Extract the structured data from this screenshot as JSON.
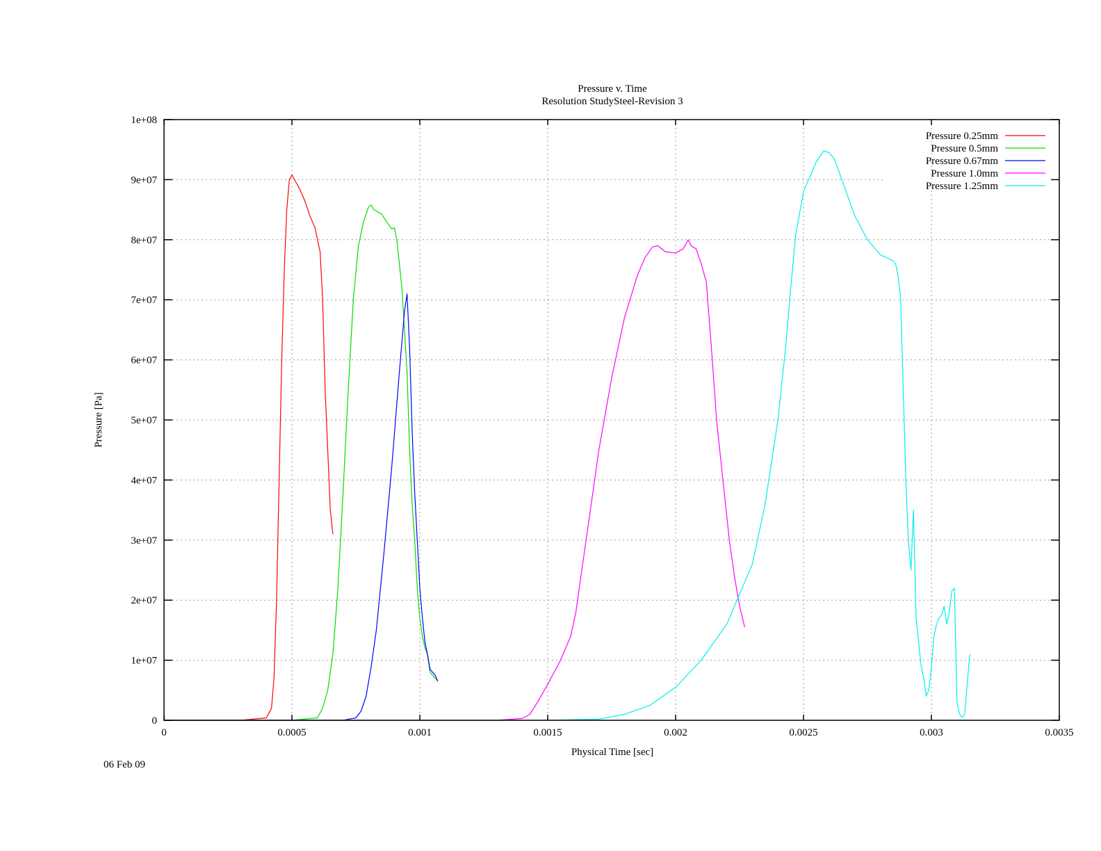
{
  "footer": {
    "date": "06 Feb 09"
  },
  "chart_data": {
    "type": "line",
    "title": "Pressure v. Time",
    "subtitle": "Resolution StudySteel-Revision 3",
    "xlabel": "Physical Time [sec]",
    "ylabel": "Pressure [Pa]",
    "xlabel_color": "#00dd00",
    "ylabel_color": "#ff0000",
    "xlim": [
      0,
      0.0035
    ],
    "ylim": [
      0,
      100000000
    ],
    "xticks": [
      0,
      0.0005,
      0.001,
      0.0015,
      0.002,
      0.0025,
      0.003,
      0.0035
    ],
    "xtick_labels": [
      "0",
      "0.0005",
      "0.001",
      "0.0015",
      "0.002",
      "0.0025",
      "0.003",
      "0.0035"
    ],
    "yticks": [
      0,
      10000000,
      20000000,
      30000000,
      40000000,
      50000000,
      60000000,
      70000000,
      80000000,
      90000000,
      100000000
    ],
    "ytick_labels": [
      "0",
      "1e+07",
      "2e+07",
      "3e+07",
      "4e+07",
      "5e+07",
      "6e+07",
      "7e+07",
      "8e+07",
      "9e+07",
      "1e+08"
    ],
    "grid": true,
    "legend_position": "top-right",
    "series": [
      {
        "name": "Pressure 0.25mm",
        "color": "#ff0000",
        "points": [
          [
            0,
            0
          ],
          [
            0.0003,
            0
          ],
          [
            0.0004,
            0.4
          ],
          [
            0.00042,
            2
          ],
          [
            0.00043,
            7
          ],
          [
            0.00044,
            20
          ],
          [
            0.00045,
            40
          ],
          [
            0.00046,
            60
          ],
          [
            0.00047,
            75
          ],
          [
            0.00048,
            85
          ],
          [
            0.00049,
            90
          ],
          [
            0.0005,
            90.8
          ],
          [
            0.00051,
            90
          ],
          [
            0.00053,
            88.5
          ],
          [
            0.00055,
            86.5
          ],
          [
            0.00057,
            84
          ],
          [
            0.00059,
            82
          ],
          [
            0.00061,
            78
          ],
          [
            0.00062,
            70
          ],
          [
            0.00063,
            55
          ],
          [
            0.00065,
            35
          ],
          [
            0.00066,
            31
          ]
        ]
      },
      {
        "name": "Pressure 0.5mm",
        "color": "#00dd00",
        "points": [
          [
            0,
            0
          ],
          [
            0.0005,
            0
          ],
          [
            0.0006,
            0.4
          ],
          [
            0.00062,
            2
          ],
          [
            0.00064,
            5
          ],
          [
            0.00066,
            11
          ],
          [
            0.00068,
            22
          ],
          [
            0.0007,
            38
          ],
          [
            0.00072,
            55
          ],
          [
            0.00074,
            70
          ],
          [
            0.00076,
            79
          ],
          [
            0.00078,
            83
          ],
          [
            0.0008,
            85.5
          ],
          [
            0.00081,
            85.8
          ],
          [
            0.00082,
            85
          ],
          [
            0.00085,
            84.3
          ],
          [
            0.00087,
            83
          ],
          [
            0.00089,
            81.8
          ],
          [
            0.0009,
            82
          ],
          [
            0.00091,
            80
          ],
          [
            0.00093,
            72
          ],
          [
            0.00095,
            58
          ],
          [
            0.00096,
            45
          ],
          [
            0.00097,
            36
          ],
          [
            0.00098,
            30
          ],
          [
            0.00099,
            22
          ],
          [
            0.001,
            17
          ],
          [
            0.00101,
            14
          ],
          [
            0.00102,
            12
          ],
          [
            0.00103,
            11
          ],
          [
            0.00104,
            8
          ],
          [
            0.00106,
            7
          ],
          [
            0.00107,
            6.5
          ]
        ]
      },
      {
        "name": "Pressure 0.67mm",
        "color": "#0000ff",
        "points": [
          [
            0,
            0
          ],
          [
            0.0007,
            0
          ],
          [
            0.00075,
            0.4
          ],
          [
            0.00077,
            1.5
          ],
          [
            0.00079,
            4
          ],
          [
            0.00081,
            9
          ],
          [
            0.00083,
            15
          ],
          [
            0.00086,
            28
          ],
          [
            0.00089,
            42
          ],
          [
            0.00092,
            58
          ],
          [
            0.00094,
            68
          ],
          [
            0.00095,
            71
          ],
          [
            0.00096,
            62
          ],
          [
            0.00097,
            48
          ],
          [
            0.00098,
            38
          ],
          [
            0.00099,
            30
          ],
          [
            0.001,
            22
          ],
          [
            0.00101,
            17
          ],
          [
            0.00102,
            13
          ],
          [
            0.00103,
            11
          ],
          [
            0.00104,
            8.5
          ],
          [
            0.00106,
            7.5
          ],
          [
            0.00107,
            6.5
          ]
        ]
      },
      {
        "name": "Pressure 1.0mm",
        "color": "#ff00ff",
        "points": [
          [
            0,
            0
          ],
          [
            0.0013,
            0
          ],
          [
            0.0014,
            0.3
          ],
          [
            0.00143,
            1
          ],
          [
            0.00146,
            3
          ],
          [
            0.0015,
            6
          ],
          [
            0.00155,
            10
          ],
          [
            0.00159,
            14
          ],
          [
            0.00161,
            18
          ],
          [
            0.00163,
            24
          ],
          [
            0.00166,
            33
          ],
          [
            0.0017,
            45
          ],
          [
            0.00175,
            57
          ],
          [
            0.0018,
            67
          ],
          [
            0.00185,
            74
          ],
          [
            0.00188,
            77
          ],
          [
            0.00191,
            78.8
          ],
          [
            0.00193,
            79
          ],
          [
            0.00196,
            78
          ],
          [
            0.002,
            77.8
          ],
          [
            0.00203,
            78.5
          ],
          [
            0.00205,
            80
          ],
          [
            0.00206,
            79
          ],
          [
            0.00208,
            78.5
          ],
          [
            0.0021,
            76
          ],
          [
            0.00212,
            73
          ],
          [
            0.00214,
            62
          ],
          [
            0.00216,
            50
          ],
          [
            0.00219,
            38
          ],
          [
            0.00221,
            30
          ],
          [
            0.00223,
            24
          ],
          [
            0.00225,
            19
          ],
          [
            0.00227,
            15.5
          ]
        ]
      },
      {
        "name": "Pressure 1.25mm",
        "color": "#00eeee",
        "points": [
          [
            0,
            0
          ],
          [
            0.0015,
            0
          ],
          [
            0.0017,
            0.2
          ],
          [
            0.0018,
            1
          ],
          [
            0.0019,
            2.5
          ],
          [
            0.002,
            5.5
          ],
          [
            0.0021,
            10
          ],
          [
            0.0022,
            16
          ],
          [
            0.0023,
            26
          ],
          [
            0.00235,
            36
          ],
          [
            0.0024,
            50
          ],
          [
            0.00243,
            62
          ],
          [
            0.00245,
            72
          ],
          [
            0.00247,
            81
          ],
          [
            0.0025,
            88
          ],
          [
            0.00255,
            93
          ],
          [
            0.00258,
            94.8
          ],
          [
            0.0026,
            94.5
          ],
          [
            0.00262,
            93.5
          ],
          [
            0.00265,
            90
          ],
          [
            0.0027,
            84
          ],
          [
            0.00275,
            80
          ],
          [
            0.0028,
            77.5
          ],
          [
            0.00285,
            76.5
          ],
          [
            0.00286,
            76
          ],
          [
            0.00287,
            74
          ],
          [
            0.00288,
            70
          ],
          [
            0.00289,
            55
          ],
          [
            0.0029,
            40
          ],
          [
            0.00291,
            30
          ],
          [
            0.00292,
            25
          ],
          [
            0.00293,
            35
          ],
          [
            0.00294,
            17
          ],
          [
            0.00295,
            13
          ],
          [
            0.00296,
            9
          ],
          [
            0.00297,
            7
          ],
          [
            0.00298,
            4
          ],
          [
            0.00299,
            5
          ],
          [
            0.003,
            9
          ],
          [
            0.00301,
            14
          ],
          [
            0.00302,
            16
          ],
          [
            0.00303,
            17
          ],
          [
            0.00304,
            17.5
          ],
          [
            0.00305,
            19
          ],
          [
            0.00306,
            16
          ],
          [
            0.00307,
            18
          ],
          [
            0.00308,
            21.5
          ],
          [
            0.00309,
            22
          ],
          [
            0.0031,
            3
          ],
          [
            0.00311,
            1
          ],
          [
            0.00312,
            0.5
          ],
          [
            0.00313,
            1
          ],
          [
            0.00315,
            11
          ]
        ]
      }
    ]
  }
}
